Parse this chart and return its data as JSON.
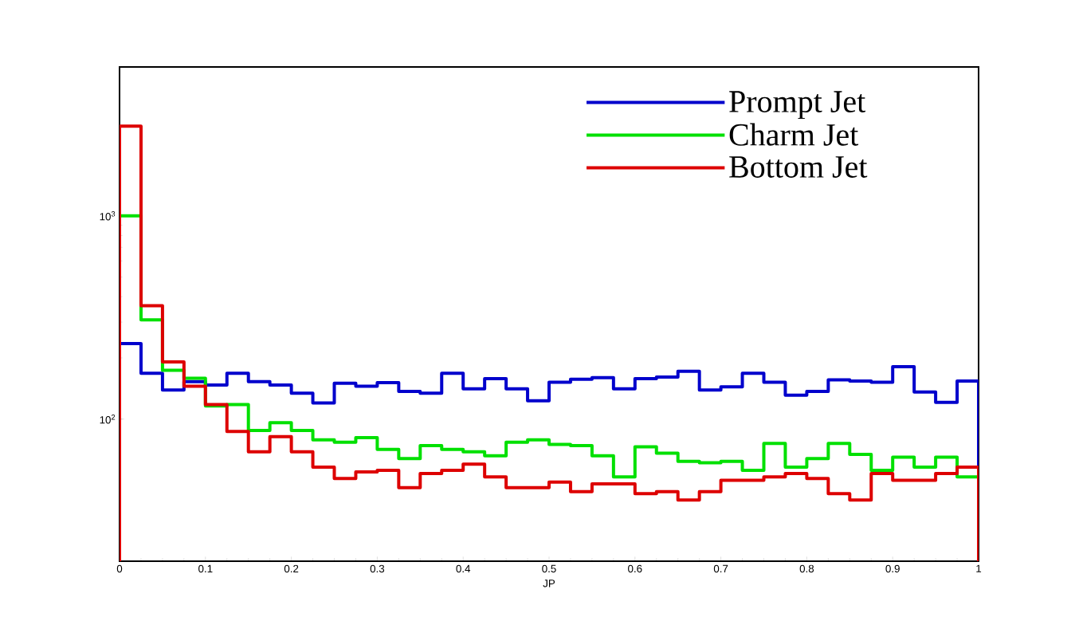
{
  "chart_data": {
    "type": "histogram",
    "xlabel": "JP",
    "log": "y",
    "legend": "top right",
    "xlim": [
      0,
      1
    ],
    "ylim": [
      20,
      5400
    ],
    "xticks": [
      0,
      0.1,
      0.2,
      0.3,
      0.4,
      0.5,
      0.6,
      0.7,
      0.8,
      0.9,
      1
    ],
    "yticks": [
      {
        "value": 100,
        "label": "10$^{2}$"
      },
      {
        "value": 1000,
        "label": "10$^{3}$"
      }
    ],
    "bins": [
      0,
      0.025,
      0.05,
      0.075,
      0.1,
      0.125,
      0.15,
      0.175,
      0.2,
      0.225,
      0.25,
      0.275,
      0.3,
      0.325,
      0.35,
      0.375,
      0.4,
      0.425,
      0.45,
      0.475,
      0.5,
      0.525,
      0.55,
      0.575,
      0.6,
      0.625,
      0.65,
      0.675,
      0.7,
      0.725,
      0.75,
      0.775,
      0.8,
      0.825,
      0.85,
      0.875,
      0.9,
      0.925,
      0.95,
      0.975,
      1
    ],
    "series": [
      {
        "name": "Prompt Jet",
        "color": "#0000cc",
        "values": [
          235,
          168,
          139,
          153,
          147,
          168,
          153,
          147,
          134,
          120,
          150,
          145,
          151,
          137,
          134,
          168,
          141,
          158,
          141,
          123,
          152,
          157,
          160,
          141,
          158,
          161,
          172,
          139,
          144,
          168,
          152,
          131,
          137,
          156,
          154,
          152,
          181,
          136,
          121,
          154
        ]
      },
      {
        "name": "Charm Jet",
        "color": "#00e000",
        "values": [
          1000,
          308,
          174,
          159,
          116,
          118,
          88,
          96,
          88,
          79,
          77,
          81,
          71,
          64,
          74,
          71,
          69,
          66,
          77,
          79,
          75,
          74,
          66,
          52,
          73,
          68,
          62,
          61,
          62,
          56,
          76,
          58,
          64,
          76,
          67,
          56,
          65,
          58,
          65,
          52
        ]
      },
      {
        "name": "Bottom Jet",
        "color": "#dd0000",
        "values": [
          2760,
          361,
          191,
          145,
          118,
          87,
          69,
          82,
          69,
          58,
          51,
          55,
          56,
          46,
          54,
          56,
          60,
          52,
          46,
          46,
          49,
          44,
          48,
          48,
          43,
          44,
          40,
          44,
          50,
          50,
          52,
          54,
          51,
          43,
          40,
          54,
          50,
          50,
          54,
          58
        ]
      }
    ]
  }
}
